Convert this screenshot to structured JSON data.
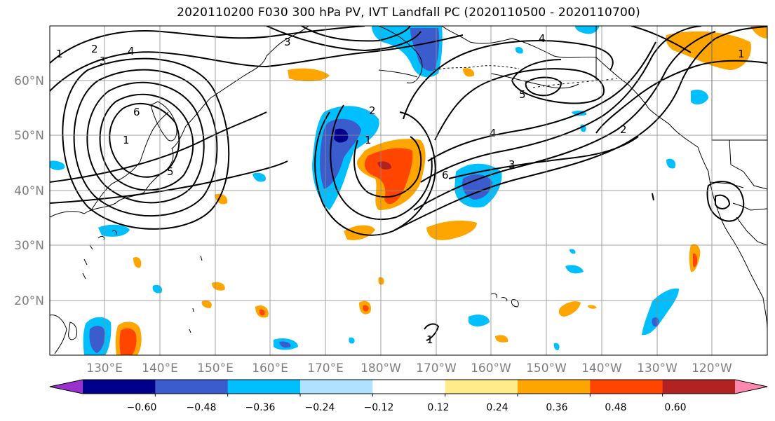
{
  "title": "2020110200 F030 300 hPa PV, IVT Landfall PC (2020110500 - 2020110700)",
  "lat_labels": [
    "60°N",
    "50°N",
    "40°N",
    "30°N",
    "20°N"
  ],
  "lon_labels": [
    "130°E",
    "140°E",
    "150°E",
    "160°E",
    "170°E",
    "180°W",
    "170°W",
    "160°W",
    "150°W",
    "140°W",
    "130°W",
    "120°W"
  ],
  "colorbar": {
    "tick_labels": [
      "−0.60",
      "−0.48",
      "−0.36",
      "−0.24",
      "−0.12",
      "0.12",
      "0.24",
      "0.36",
      "0.48",
      "0.60"
    ],
    "colors": [
      "#9932CC",
      "#00008B",
      "#3A5CCC",
      "#00BFFF",
      "#B0E2FF",
      "#FFFFFF",
      "#FFEB8A",
      "#FFA500",
      "#FF4500",
      "#B22222",
      "#FF88B0"
    ]
  },
  "pv_contour_labels": [
    "1",
    "2",
    "3",
    "4",
    "5",
    "6",
    "1",
    "2",
    "3",
    "4",
    "5",
    "6",
    "1",
    "2",
    "3",
    "4",
    "1",
    "1"
  ]
}
